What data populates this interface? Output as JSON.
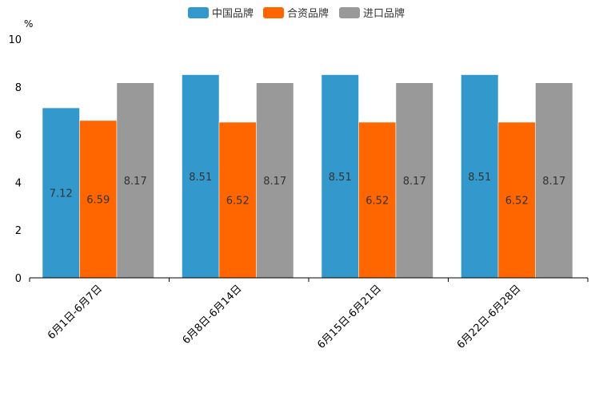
{
  "chart_data": {
    "type": "bar",
    "title": "",
    "xlabel": "",
    "ylabel": "%",
    "ylim": [
      0,
      10
    ],
    "yticks": [
      "0",
      "2",
      "4",
      "6",
      "8",
      "10"
    ],
    "grid": false,
    "legend_position": "top-center",
    "categories": [
      "6月1日-6月7日",
      "6月8日-6月14日",
      "6月15日-6月21日",
      "6月22日-6月28日"
    ],
    "series": [
      {
        "name": "中国品牌",
        "color": "#3399cc",
        "values": [
          7.12,
          8.51,
          8.51,
          8.51
        ],
        "labels": [
          "7.12",
          "8.51",
          "8.51",
          "8.51"
        ]
      },
      {
        "name": "合资品牌",
        "color": "#ff6600",
        "values": [
          6.59,
          6.52,
          6.52,
          6.52
        ],
        "labels": [
          "6.59",
          "6.52",
          "6.52",
          "6.52"
        ]
      },
      {
        "name": "进口品牌",
        "color": "#999999",
        "values": [
          8.17,
          8.17,
          8.17,
          8.17
        ],
        "labels": [
          "8.17",
          "8.17",
          "8.17",
          "8.17"
        ]
      }
    ]
  }
}
